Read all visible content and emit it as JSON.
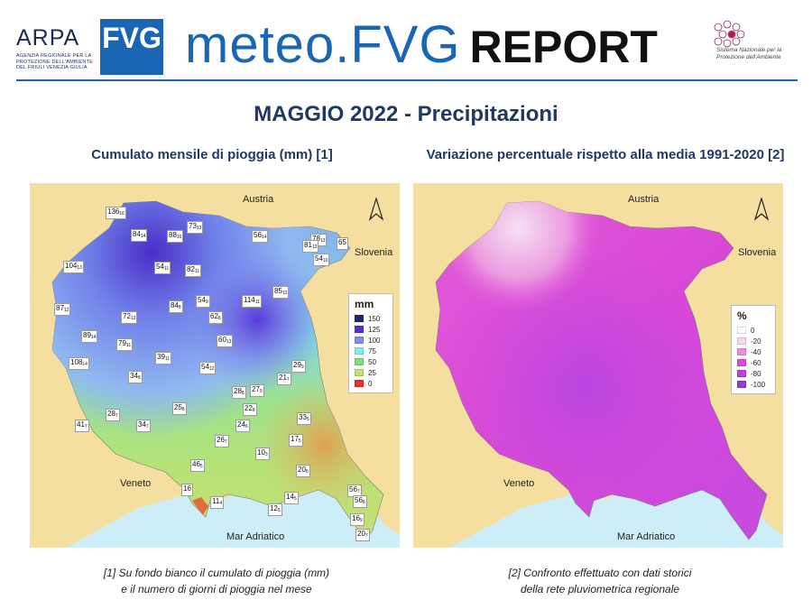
{
  "header": {
    "arpa_word": "ARPA",
    "fvg_word": "FVG",
    "arpa_subtitle": "Agenzia regionale per la protezione dell'ambiente del Friuli Venezia Giulia",
    "brand_meteo": "meteo.FVG",
    "brand_report": "REPORT",
    "snpa_text": "Sistema Nazionale per la Protezione dell'Ambiente"
  },
  "title": "MAGGIO 2022 - Precipitazioni",
  "map1": {
    "title": "Cumulato mensile di pioggia (mm) [1]",
    "labels": {
      "austria": "Austria",
      "slovenia": "Slovenia",
      "veneto": "Veneto",
      "sea": "Mar Adriatico"
    },
    "legend": {
      "title": "mm",
      "items": [
        {
          "label": "150",
          "color": "#1e2a6e"
        },
        {
          "label": "125",
          "color": "#5030d0"
        },
        {
          "label": "100",
          "color": "#7f8ff0"
        },
        {
          "label": "75",
          "color": "#7feef0"
        },
        {
          "label": "50",
          "color": "#7fe07a"
        },
        {
          "label": "25",
          "color": "#bde66a"
        },
        {
          "label": "0",
          "color": "#e8322a"
        }
      ]
    },
    "stations": [
      {
        "value": "136",
        "days": "16"
      },
      {
        "value": "73",
        "days": "13"
      },
      {
        "value": "84",
        "days": "14"
      },
      {
        "value": "88",
        "days": "16"
      },
      {
        "value": "56",
        "days": "14"
      },
      {
        "value": "78",
        "days": "13"
      },
      {
        "value": "81",
        "days": "13"
      },
      {
        "value": "65",
        "days": ""
      },
      {
        "value": "54",
        "days": "10"
      },
      {
        "value": "104",
        "days": "13"
      },
      {
        "value": "54",
        "days": "11"
      },
      {
        "value": "82",
        "days": "11"
      },
      {
        "value": "85",
        "days": "13"
      },
      {
        "value": "54",
        "days": "9"
      },
      {
        "value": "114",
        "days": "11"
      },
      {
        "value": "87",
        "days": "12"
      },
      {
        "value": "84",
        "days": "8"
      },
      {
        "value": "62",
        "days": "8"
      },
      {
        "value": "72",
        "days": "13"
      },
      {
        "value": "89",
        "days": "14"
      },
      {
        "value": "60",
        "days": "13"
      },
      {
        "value": "79",
        "days": "11"
      },
      {
        "value": "39",
        "days": "11"
      },
      {
        "value": "108",
        "days": "14"
      },
      {
        "value": "29",
        "days": "9"
      },
      {
        "value": "34",
        "days": "8"
      },
      {
        "value": "54",
        "days": "12"
      },
      {
        "value": "21",
        "days": "7"
      },
      {
        "value": "28",
        "days": "8"
      },
      {
        "value": "27",
        "days": "9"
      },
      {
        "value": "22",
        "days": "8"
      },
      {
        "value": "25",
        "days": "8"
      },
      {
        "value": "28",
        "days": "7"
      },
      {
        "value": "33",
        "days": "5"
      },
      {
        "value": "41",
        "days": "7"
      },
      {
        "value": "34",
        "days": "7"
      },
      {
        "value": "24",
        "days": "6"
      },
      {
        "value": "26",
        "days": "7"
      },
      {
        "value": "17",
        "days": "5"
      },
      {
        "value": "10",
        "days": "3"
      },
      {
        "value": "46",
        "days": "5"
      },
      {
        "value": "20",
        "days": "6"
      },
      {
        "value": "16",
        "days": ""
      },
      {
        "value": "56",
        "days": "7"
      },
      {
        "value": "56",
        "days": "8"
      },
      {
        "value": "11",
        "days": "4"
      },
      {
        "value": "14",
        "days": "5"
      },
      {
        "value": "12",
        "days": "5"
      },
      {
        "value": "16",
        "days": "9"
      },
      {
        "value": "20",
        "days": "7"
      }
    ]
  },
  "map2": {
    "title": "Variazione percentuale rispetto alla media 1991-2020 [2]",
    "labels": {
      "austria": "Austria",
      "slovenia": "Slovenia",
      "veneto": "Veneto",
      "sea": "Mar Adriatico"
    },
    "legend": {
      "title": "%",
      "items": [
        {
          "label": "0",
          "color": "#ffffff"
        },
        {
          "label": "-20",
          "color": "#f6d8f0"
        },
        {
          "label": "-40",
          "color": "#f08ce0"
        },
        {
          "label": "-60",
          "color": "#e04ad8"
        },
        {
          "label": "-80",
          "color": "#c040e0"
        },
        {
          "label": "-100",
          "color": "#9a3ad8"
        }
      ]
    }
  },
  "caption1": [
    "[1] Su fondo bianco il cumulato di pioggia (mm)",
    "e il numero di giorni di pioggia nel mese"
  ],
  "caption2": [
    "[2] Confronto effettuato con dati storici",
    "della rete pluviometrica regionale"
  ],
  "colors": {
    "brand_blue": "#1a66b4",
    "title_navy": "#1f3864",
    "land": "#f5dfa0",
    "sea": "#cdeef8"
  }
}
